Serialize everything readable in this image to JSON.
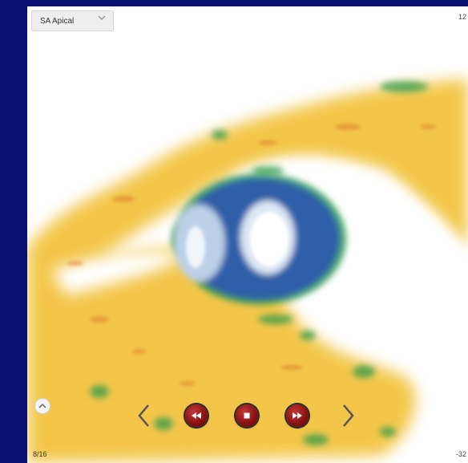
{
  "view_select": {
    "value": "SA Apical",
    "chevron_icon": "chevron-down-icon"
  },
  "scale": {
    "top_label": "12",
    "bottom_label": "-32"
  },
  "frame_counter": "8/16",
  "controls": {
    "collapse_icon": "chevron-up-icon",
    "prev_icon": "chevron-left-icon",
    "rewind_icon": "rewind-icon",
    "stop_icon": "stop-icon",
    "fast_forward_icon": "fast-forward-icon",
    "next_icon": "chevron-right-icon"
  },
  "colors": {
    "background": "#0a0f74",
    "myocardium_yellow": "#f2c23a",
    "cavity_blue": "#2d5ea8",
    "edge_green": "#2f9a4a",
    "button_red": "#8c1212"
  }
}
